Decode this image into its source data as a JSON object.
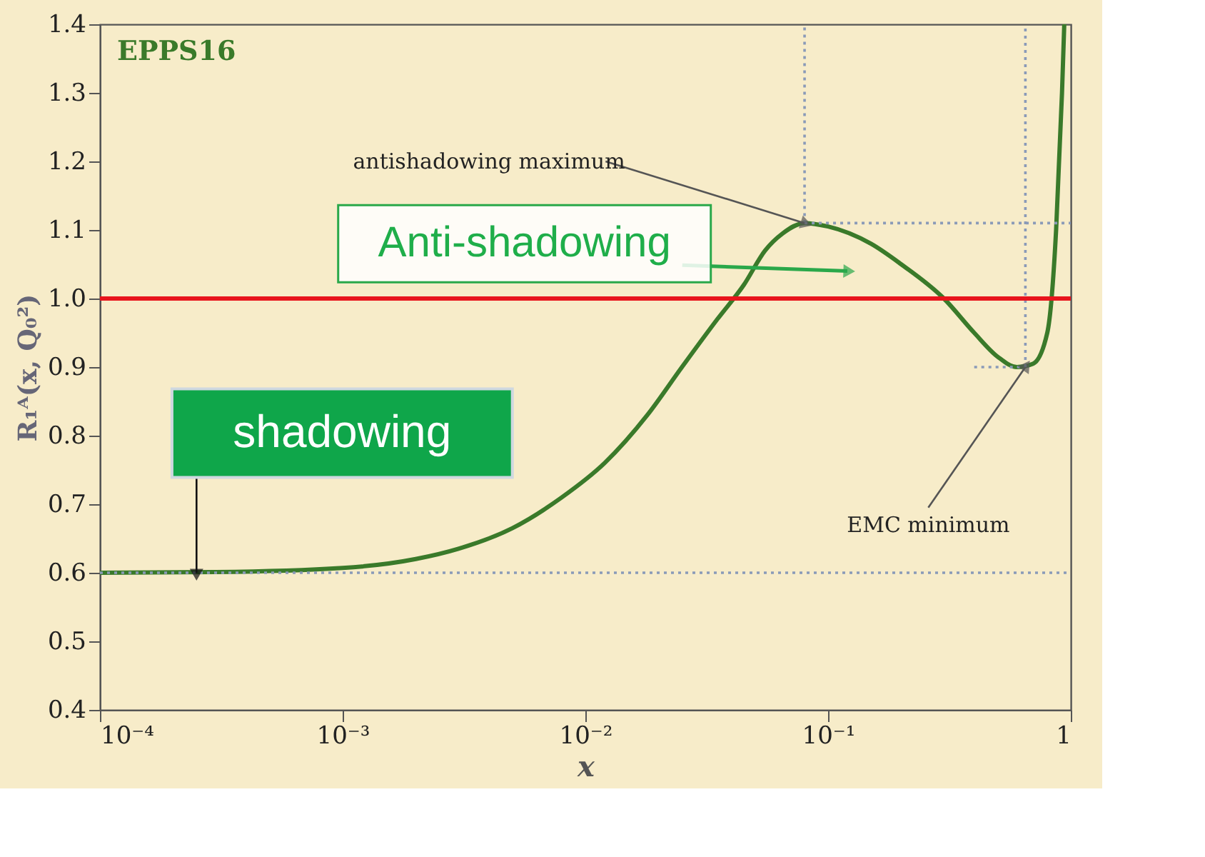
{
  "chart_data": {
    "type": "line",
    "ylabel": "R₁ᴬ(x, Q₀²)",
    "xlabel": "x",
    "log": "x",
    "xlim": [
      0.0001,
      1
    ],
    "ylim": [
      0.4,
      1.4
    ],
    "xticks": [
      {
        "value": 0.0001,
        "label": "10⁻⁴"
      },
      {
        "value": 0.001,
        "label": "10⁻³"
      },
      {
        "value": 0.01,
        "label": "10⁻²"
      },
      {
        "value": 0.1,
        "label": "10⁻¹"
      },
      1
    ],
    "yticks": [
      0.4,
      0.5,
      0.6,
      0.7,
      0.8,
      0.9,
      {
        "value": 1,
        "label": "1.0"
      },
      1.1,
      1.2,
      1.3,
      1.4
    ],
    "grid": false,
    "series": [
      {
        "name": "EPPS16",
        "color": "#3a7a2a",
        "line_style": "solid",
        "x": [
          0.0001,
          0.0003,
          0.001,
          0.002,
          0.003,
          0.005,
          0.008,
          0.012,
          0.018,
          0.025,
          0.035,
          0.045,
          0.055,
          0.065,
          0.08,
          0.1,
          0.15,
          0.2,
          0.3,
          0.4,
          0.5,
          0.6,
          0.7,
          0.8,
          0.87,
          0.92,
          0.94
        ],
        "values": [
          0.6,
          0.601,
          0.607,
          0.62,
          0.635,
          0.665,
          0.71,
          0.76,
          0.83,
          0.9,
          0.97,
          1.02,
          1.07,
          1.095,
          1.11,
          1.105,
          1.08,
          1.05,
          1.0,
          0.95,
          0.915,
          0.9,
          0.905,
          0.95,
          1.1,
          1.3,
          1.4
        ]
      },
      {
        "color": "#8a9ab8",
        "line_style": "dotted",
        "x": [
          0.0001,
          1
        ],
        "values": [
          0.6,
          0.6
        ]
      },
      {
        "color": "#8a9ab8",
        "line_style": "dotted",
        "x": [
          0.08,
          1
        ],
        "values": [
          1.11,
          1.11
        ]
      },
      {
        "color": "#8a9ab8",
        "line_style": "dotted",
        "x": [
          0.4,
          0.65
        ],
        "values": [
          0.9,
          0.9
        ]
      },
      {
        "color": "#8a9ab8",
        "line_style": "dotted",
        "x": [
          0.08,
          0.08
        ],
        "values": [
          1.11,
          1.4
        ]
      },
      {
        "color": "#8a9ab8",
        "line_style": "dotted",
        "x": [
          0.65,
          0.65
        ],
        "values": [
          0.9,
          1.4
        ]
      }
    ],
    "ref_lines": [
      {
        "axis": "y",
        "value": 1.0,
        "color": "#e8141c",
        "line_style": "solid"
      }
    ],
    "annotations": [
      {
        "text": "antishadowing maximum",
        "x": 0.08,
        "y": 1.11
      },
      {
        "text": "EMC minimum",
        "x": 0.65,
        "y": 0.9
      },
      {
        "text": "Anti-shadowing",
        "x": 0.12,
        "y": 1.04
      },
      {
        "text": "shadowing",
        "x": 0.00025,
        "y": 0.6
      }
    ]
  }
}
